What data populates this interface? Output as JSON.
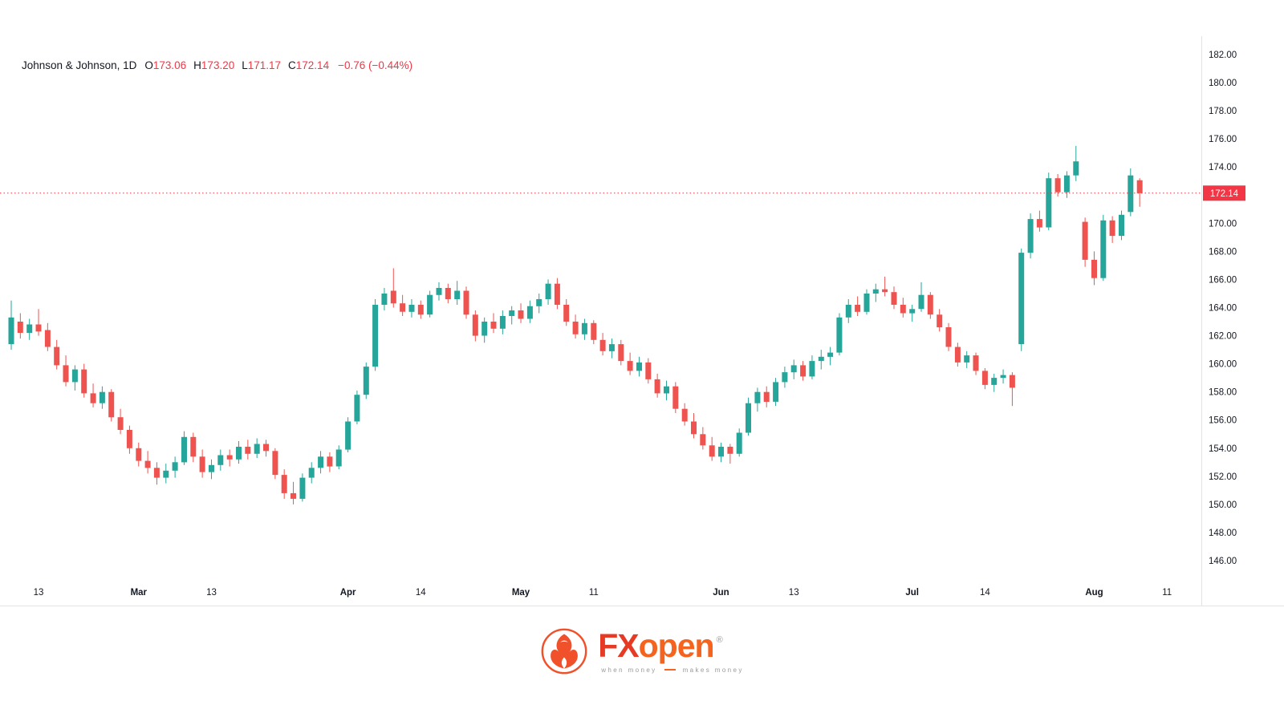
{
  "header": {
    "symbol": "Johnson & Johnson, 1D",
    "o_label": "O",
    "o": "173.06",
    "h_label": "H",
    "h": "173.20",
    "l_label": "L",
    "l": "171.17",
    "c_label": "C",
    "c": "172.14",
    "change": "−0.76 (−0.44%)"
  },
  "colors": {
    "up": "#26a69a",
    "down": "#ef5350",
    "accent_red": "#f23645",
    "text": "#131722",
    "border": "#e0e3eb",
    "badge_text": "#ffffff"
  },
  "chart_data": {
    "type": "candlestick",
    "title": "Johnson & Johnson, 1D",
    "symbol": "Johnson & Johnson",
    "timeframe": "1D",
    "ylim": [
      146,
      182
    ],
    "grid": false,
    "last_price": {
      "value": 172.14,
      "label": "172.14"
    },
    "y_axis": {
      "max": 182,
      "min": 146,
      "step": 2,
      "labels": [
        "182.00",
        "180.00",
        "178.00",
        "176.00",
        "174.00",
        "172.00",
        "170.00",
        "168.00",
        "166.00",
        "164.00",
        "162.00",
        "160.00",
        "158.00",
        "156.00",
        "154.00",
        "152.00",
        "150.00",
        "148.00",
        "146.00"
      ]
    },
    "time_ticks": [
      {
        "label": "13",
        "index": 3,
        "major": false
      },
      {
        "label": "Mar",
        "index": 14,
        "major": true
      },
      {
        "label": "13",
        "index": 22,
        "major": false
      },
      {
        "label": "Apr",
        "index": 37,
        "major": true
      },
      {
        "label": "14",
        "index": 45,
        "major": false
      },
      {
        "label": "May",
        "index": 56,
        "major": true
      },
      {
        "label": "11",
        "index": 64,
        "major": false
      },
      {
        "label": "Jun",
        "index": 78,
        "major": true
      },
      {
        "label": "13",
        "index": 86,
        "major": false
      },
      {
        "label": "Jul",
        "index": 99,
        "major": true
      },
      {
        "label": "14",
        "index": 107,
        "major": false
      },
      {
        "label": "Aug",
        "index": 119,
        "major": true
      },
      {
        "label": "11",
        "index": 127,
        "major": false
      }
    ],
    "ohlc": [
      [
        161.4,
        164.5,
        161.0,
        163.3
      ],
      [
        163.0,
        163.6,
        161.8,
        162.2
      ],
      [
        162.2,
        163.2,
        161.7,
        162.8
      ],
      [
        162.8,
        163.9,
        162.0,
        162.3
      ],
      [
        162.4,
        162.9,
        160.9,
        161.2
      ],
      [
        161.2,
        161.7,
        159.6,
        159.9
      ],
      [
        159.9,
        160.6,
        158.4,
        158.7
      ],
      [
        158.7,
        159.9,
        158.1,
        159.6
      ],
      [
        159.6,
        160.0,
        157.6,
        157.9
      ],
      [
        157.9,
        158.6,
        156.9,
        157.2
      ],
      [
        157.2,
        158.4,
        156.8,
        158.0
      ],
      [
        158.0,
        158.2,
        155.9,
        156.2
      ],
      [
        156.2,
        156.8,
        155.0,
        155.3
      ],
      [
        155.3,
        155.6,
        153.6,
        154.0
      ],
      [
        154.0,
        154.4,
        152.7,
        153.1
      ],
      [
        153.1,
        153.8,
        152.2,
        152.6
      ],
      [
        152.6,
        153.0,
        151.4,
        151.9
      ],
      [
        151.9,
        152.9,
        151.5,
        152.4
      ],
      [
        152.4,
        153.4,
        151.9,
        153.0
      ],
      [
        153.0,
        155.2,
        152.8,
        154.8
      ],
      [
        154.8,
        155.1,
        153.0,
        153.4
      ],
      [
        153.4,
        153.9,
        151.9,
        152.3
      ],
      [
        152.3,
        153.2,
        151.8,
        152.8
      ],
      [
        152.8,
        153.9,
        152.4,
        153.5
      ],
      [
        153.5,
        153.9,
        152.7,
        153.2
      ],
      [
        153.2,
        154.5,
        152.9,
        154.1
      ],
      [
        154.1,
        154.6,
        153.2,
        153.6
      ],
      [
        153.6,
        154.7,
        153.3,
        154.3
      ],
      [
        154.3,
        154.6,
        153.4,
        153.8
      ],
      [
        153.8,
        154.0,
        151.8,
        152.1
      ],
      [
        152.1,
        152.5,
        150.4,
        150.8
      ],
      [
        150.8,
        151.6,
        150.0,
        150.4
      ],
      [
        150.4,
        152.2,
        150.2,
        151.9
      ],
      [
        151.9,
        153.0,
        151.5,
        152.6
      ],
      [
        152.6,
        153.8,
        152.2,
        153.4
      ],
      [
        153.4,
        153.7,
        152.3,
        152.7
      ],
      [
        152.7,
        154.2,
        152.5,
        153.9
      ],
      [
        153.9,
        156.2,
        153.7,
        155.9
      ],
      [
        155.9,
        158.1,
        155.7,
        157.8
      ],
      [
        157.8,
        160.1,
        157.5,
        159.8
      ],
      [
        159.8,
        164.6,
        159.5,
        164.2
      ],
      [
        164.2,
        165.4,
        163.8,
        165.0
      ],
      [
        165.2,
        166.8,
        164.0,
        164.3
      ],
      [
        164.3,
        164.9,
        163.4,
        163.7
      ],
      [
        163.7,
        164.6,
        163.3,
        164.2
      ],
      [
        164.2,
        164.5,
        163.2,
        163.5
      ],
      [
        163.5,
        165.2,
        163.3,
        164.9
      ],
      [
        164.9,
        165.8,
        164.5,
        165.4
      ],
      [
        165.4,
        165.7,
        164.3,
        164.6
      ],
      [
        164.6,
        165.9,
        164.2,
        165.2
      ],
      [
        165.2,
        165.5,
        163.2,
        163.5
      ],
      [
        163.5,
        163.8,
        161.6,
        162.0
      ],
      [
        162.0,
        163.3,
        161.5,
        163.0
      ],
      [
        163.0,
        163.6,
        162.2,
        162.5
      ],
      [
        162.5,
        163.8,
        162.1,
        163.4
      ],
      [
        163.4,
        164.1,
        162.8,
        163.8
      ],
      [
        163.8,
        164.3,
        162.9,
        163.2
      ],
      [
        163.2,
        164.5,
        162.9,
        164.1
      ],
      [
        164.1,
        165.0,
        163.6,
        164.6
      ],
      [
        164.6,
        166.0,
        164.2,
        165.7
      ],
      [
        165.7,
        166.1,
        163.9,
        164.2
      ],
      [
        164.2,
        164.6,
        162.7,
        163.0
      ],
      [
        163.0,
        163.5,
        161.8,
        162.1
      ],
      [
        162.1,
        163.2,
        161.7,
        162.9
      ],
      [
        162.9,
        163.1,
        161.4,
        161.7
      ],
      [
        161.7,
        162.2,
        160.6,
        160.9
      ],
      [
        160.9,
        161.8,
        160.4,
        161.4
      ],
      [
        161.4,
        161.7,
        159.9,
        160.2
      ],
      [
        160.2,
        160.8,
        159.2,
        159.5
      ],
      [
        159.5,
        160.5,
        159.1,
        160.1
      ],
      [
        160.1,
        160.4,
        158.6,
        158.9
      ],
      [
        158.9,
        159.3,
        157.6,
        157.9
      ],
      [
        157.9,
        158.8,
        157.4,
        158.4
      ],
      [
        158.4,
        158.7,
        156.5,
        156.8
      ],
      [
        156.8,
        157.2,
        155.6,
        155.9
      ],
      [
        155.9,
        156.5,
        154.7,
        155.0
      ],
      [
        155.0,
        155.5,
        153.9,
        154.2
      ],
      [
        154.2,
        154.8,
        153.1,
        153.4
      ],
      [
        153.4,
        154.4,
        153.0,
        154.1
      ],
      [
        154.1,
        154.3,
        152.9,
        153.6
      ],
      [
        153.6,
        155.4,
        153.4,
        155.1
      ],
      [
        155.1,
        157.6,
        154.9,
        157.2
      ],
      [
        157.2,
        158.3,
        156.6,
        158.0
      ],
      [
        158.0,
        158.4,
        156.9,
        157.3
      ],
      [
        157.3,
        159.0,
        157.0,
        158.7
      ],
      [
        158.7,
        159.8,
        158.3,
        159.4
      ],
      [
        159.4,
        160.3,
        158.9,
        159.9
      ],
      [
        159.9,
        160.2,
        158.8,
        159.1
      ],
      [
        159.1,
        160.6,
        158.9,
        160.2
      ],
      [
        160.2,
        161.0,
        159.6,
        160.5
      ],
      [
        160.5,
        161.2,
        159.9,
        160.8
      ],
      [
        160.8,
        163.6,
        160.6,
        163.3
      ],
      [
        163.3,
        164.6,
        162.9,
        164.2
      ],
      [
        164.2,
        164.8,
        163.4,
        163.7
      ],
      [
        163.7,
        165.3,
        163.5,
        165.0
      ],
      [
        165.0,
        165.7,
        164.4,
        165.3
      ],
      [
        165.3,
        166.2,
        164.8,
        165.1
      ],
      [
        165.1,
        165.5,
        163.9,
        164.2
      ],
      [
        164.2,
        164.7,
        163.3,
        163.6
      ],
      [
        163.6,
        164.2,
        163.0,
        163.9
      ],
      [
        163.9,
        165.8,
        163.7,
        164.9
      ],
      [
        164.9,
        165.1,
        163.2,
        163.5
      ],
      [
        163.5,
        163.9,
        162.3,
        162.6
      ],
      [
        162.6,
        162.9,
        160.9,
        161.2
      ],
      [
        161.2,
        161.5,
        159.8,
        160.1
      ],
      [
        160.1,
        160.9,
        159.7,
        160.6
      ],
      [
        160.6,
        160.8,
        159.2,
        159.5
      ],
      [
        159.5,
        159.7,
        158.2,
        158.5
      ],
      [
        158.5,
        159.3,
        158.0,
        159.0
      ],
      [
        159.0,
        159.6,
        158.6,
        159.2
      ],
      [
        159.2,
        159.4,
        157.0,
        158.3
      ],
      [
        161.4,
        168.2,
        160.9,
        167.9
      ],
      [
        167.9,
        170.7,
        167.5,
        170.3
      ],
      [
        170.3,
        170.9,
        169.4,
        169.7
      ],
      [
        169.7,
        173.6,
        169.5,
        173.2
      ],
      [
        173.2,
        173.5,
        171.9,
        172.2
      ],
      [
        172.2,
        173.7,
        171.8,
        173.4
      ],
      [
        173.4,
        175.5,
        173.0,
        174.4
      ],
      [
        170.1,
        170.4,
        166.9,
        167.4
      ],
      [
        167.4,
        168.0,
        165.6,
        166.1
      ],
      [
        166.1,
        170.6,
        165.9,
        170.2
      ],
      [
        170.2,
        170.5,
        168.6,
        169.1
      ],
      [
        169.1,
        170.9,
        168.8,
        170.6
      ],
      [
        170.8,
        173.9,
        170.5,
        173.4
      ],
      [
        173.06,
        173.2,
        171.17,
        172.14
      ]
    ]
  },
  "footer": {
    "brand_fx": "FX",
    "brand_open": "open",
    "reg": "®",
    "tagline_left": "when money",
    "tagline_right": "makes money"
  }
}
